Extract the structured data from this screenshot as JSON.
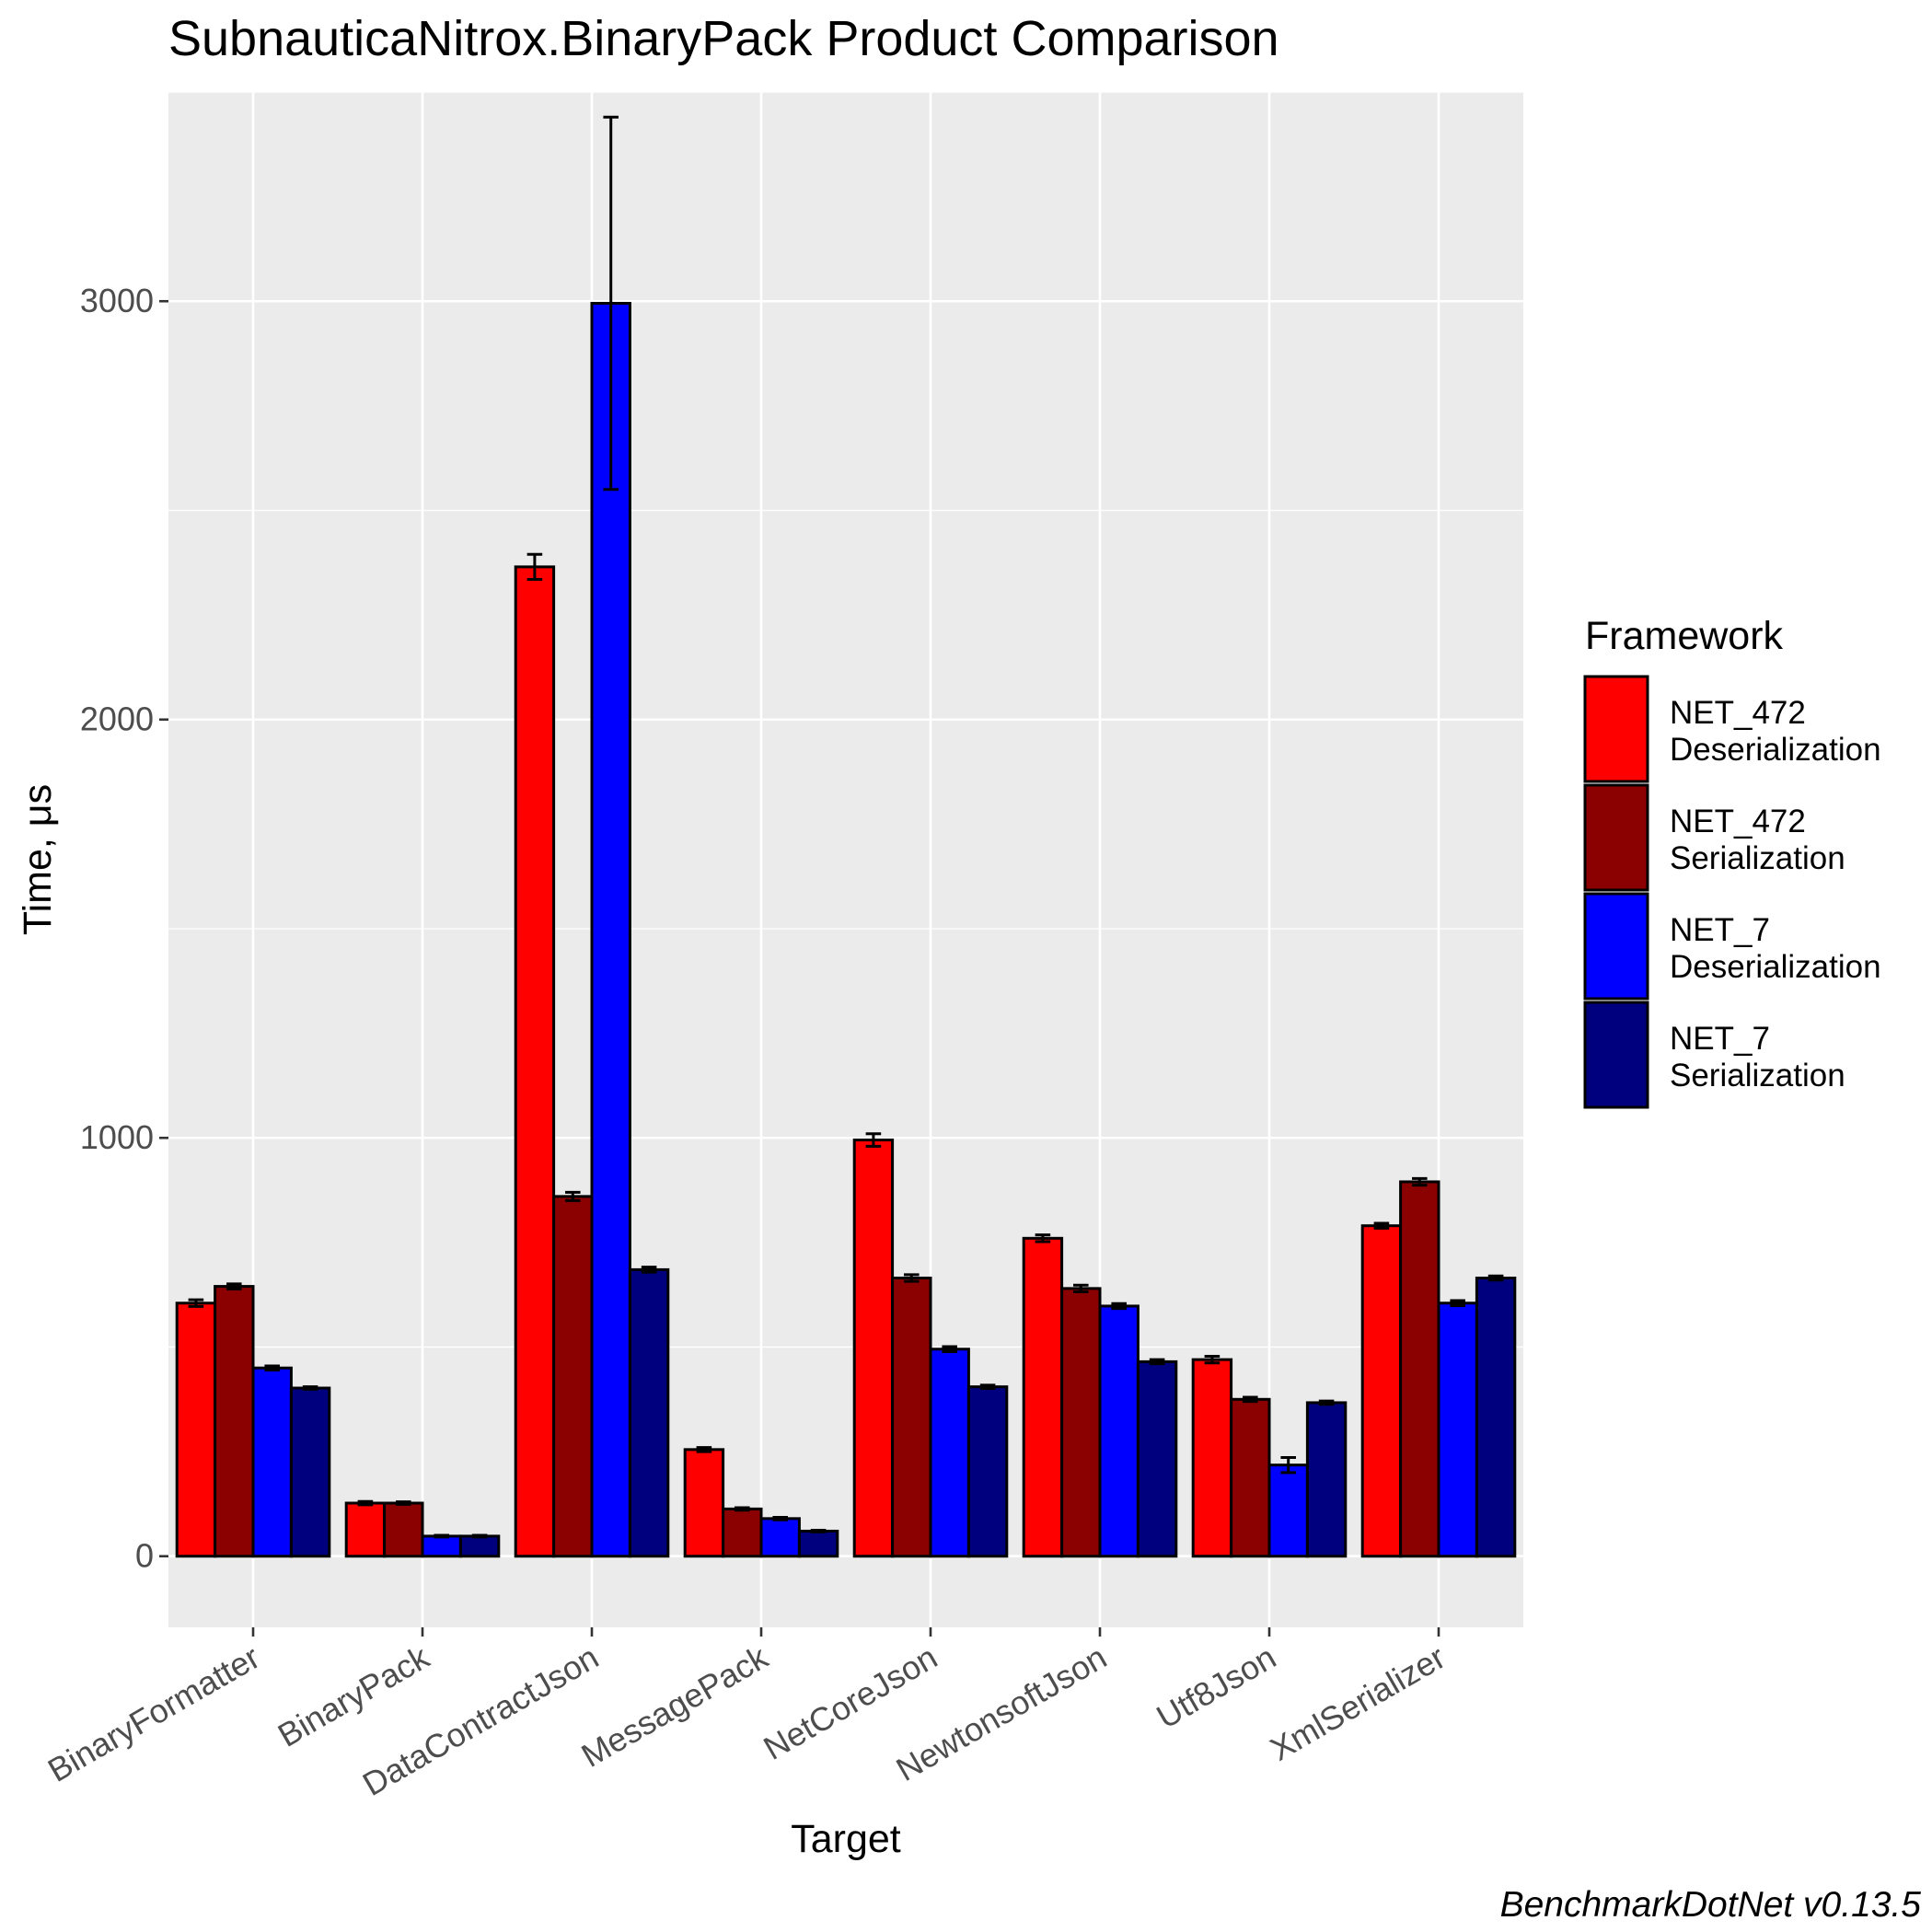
{
  "chart_data": {
    "type": "bar",
    "title": "SubnauticaNitrox.BinaryPack Product Comparison",
    "xlabel": "Target",
    "ylabel": "Time, μs",
    "caption": "BenchmarkDotNet v0.13.5",
    "ylim": [
      -170,
      3500
    ],
    "yticks": [
      0,
      1000,
      2000,
      3000
    ],
    "grid": true,
    "legend_position": "right",
    "legend_title": "Framework",
    "categories": [
      "BinaryFormatter",
      "BinaryPack",
      "DataContractJson",
      "MessagePack",
      "NetCoreJson",
      "NewtonsoftJson",
      "Utf8Json",
      "XmlSerializer"
    ],
    "series": [
      {
        "name": "NET_472\nDeserialization",
        "color": "#FF0000",
        "values": [
          605,
          127,
          2365,
          255,
          995,
          760,
          470,
          790
        ],
        "errors": [
          8,
          4,
          30,
          5,
          15,
          8,
          8,
          6
        ]
      },
      {
        "name": "NET_472\nSerialization",
        "color": "#8B0000",
        "values": [
          645,
          127,
          860,
          113,
          665,
          640,
          375,
          895
        ],
        "errors": [
          6,
          3,
          10,
          3,
          8,
          8,
          5,
          8
        ]
      },
      {
        "name": "NET_7\nDeserialization",
        "color": "#0000FF",
        "values": [
          450,
          48,
          2995,
          90,
          495,
          598,
          218,
          605
        ],
        "errors": [
          5,
          2,
          445,
          3,
          6,
          6,
          18,
          6
        ]
      },
      {
        "name": "NET_7\nSerialization",
        "color": "#00007F",
        "values": [
          402,
          48,
          685,
          60,
          405,
          465,
          367,
          665
        ],
        "errors": [
          3,
          2,
          6,
          2,
          4,
          5,
          4,
          5
        ]
      }
    ]
  }
}
